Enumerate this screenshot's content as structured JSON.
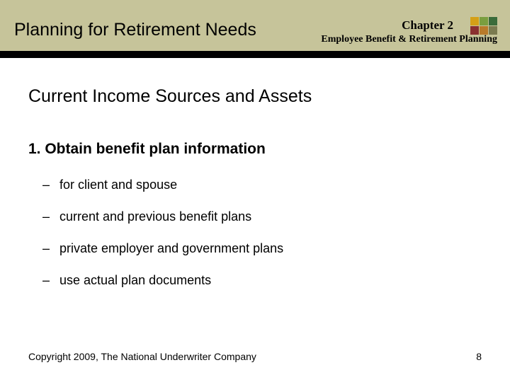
{
  "header": {
    "slide_title": "Planning for Retirement Needs",
    "chapter_label": "Chapter 2",
    "book_title": "Employee Benefit & Retirement Planning",
    "band_color": "#c6c49a",
    "bar_color": "#000000",
    "logo_colors": [
      "#d4a017",
      "#7a9e3f",
      "#3a6b3a",
      "#8a3030",
      "#b87a2a",
      "#7a7a50"
    ]
  },
  "content": {
    "section_heading": "Current Income Sources and Assets",
    "main_point": "1.  Obtain benefit plan information",
    "bullets": [
      "for client and spouse",
      "current and previous benefit plans",
      "private employer and government plans",
      "use actual plan documents"
    ]
  },
  "footer": {
    "copyright": "Copyright 2009, The National Underwriter Company",
    "page_number": "8"
  }
}
